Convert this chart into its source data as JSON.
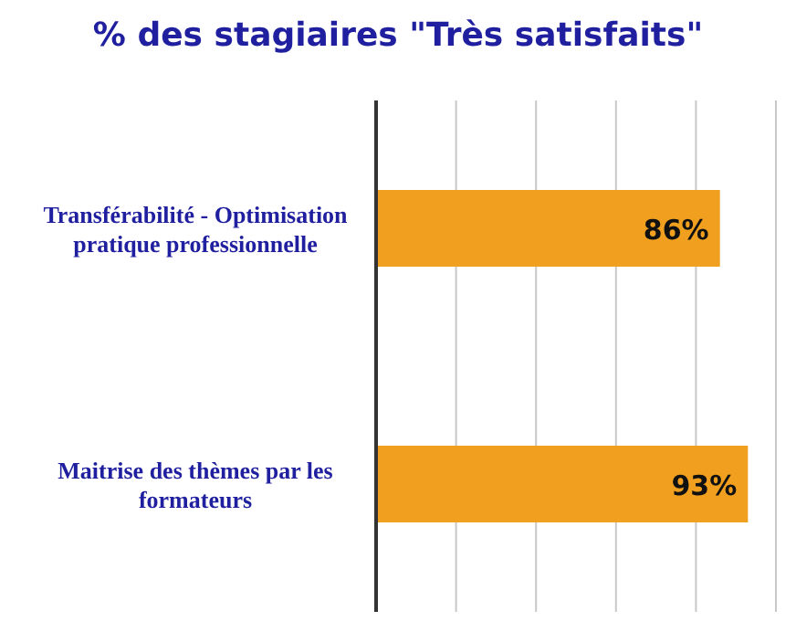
{
  "chart_data": {
    "type": "bar",
    "orientation": "horizontal",
    "title": "% des stagiaires \"Très satisfaits\"",
    "categories": [
      "Transférabilité - Optimisation pratique professionnelle",
      "Maitrise des thèmes par les formateurs"
    ],
    "values": [
      86,
      93
    ],
    "value_labels": [
      "86%",
      "93%"
    ],
    "color": "#f0a01e",
    "xlim": [
      0,
      100
    ],
    "xticks": [
      {
        "value": 0,
        "label": null
      },
      {
        "value": 20,
        "label": null
      },
      {
        "value": 40,
        "label": null
      },
      {
        "value": 60,
        "label": null
      },
      {
        "value": 80,
        "label": null
      },
      {
        "value": 100,
        "label": null
      }
    ],
    "tick_labels": "y",
    "grid": "x"
  }
}
